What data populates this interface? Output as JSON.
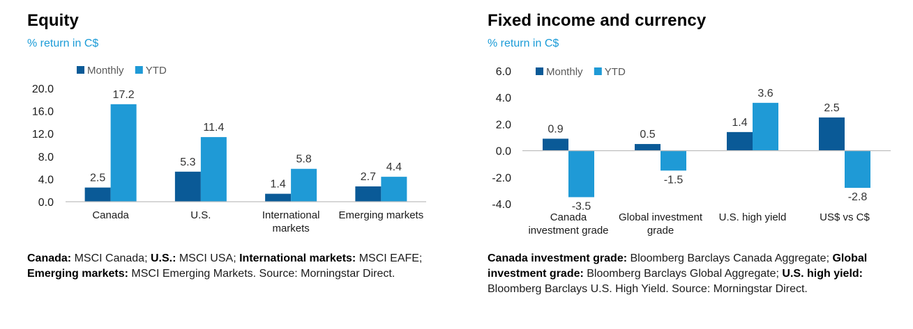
{
  "colors": {
    "monthly": "#0a5a97",
    "ytd": "#1f9ad6",
    "axis": "#bfbfbf",
    "subtitle": "#1a9bd7"
  },
  "equity": {
    "title": "Equity",
    "subtitle": "% return in C$",
    "chart_data": {
      "type": "bar",
      "categories": [
        [
          "Canada"
        ],
        [
          "U.S."
        ],
        [
          "International",
          "markets"
        ],
        [
          "Emerging markets"
        ]
      ],
      "series": [
        {
          "name": "Monthly",
          "values": [
            2.5,
            5.3,
            1.4,
            2.7
          ],
          "labels": [
            "2.5",
            "5.3",
            "1.4",
            "2.7"
          ]
        },
        {
          "name": "YTD",
          "values": [
            17.2,
            11.4,
            5.8,
            4.4
          ],
          "labels": [
            "17.2",
            "11.4",
            "5.8",
            "4.4"
          ]
        }
      ],
      "ylim": [
        0,
        20
      ],
      "yticks": [
        "0.0",
        "4.0",
        "8.0",
        "12.0",
        "16.0",
        "20.0"
      ],
      "ytick_values": [
        0,
        4,
        8,
        12,
        16,
        20
      ],
      "legend_position": "top-left",
      "grid": false
    },
    "note": [
      {
        "b": "Canada:",
        "t": " MSCI Canada; "
      },
      {
        "b": "U.S.:",
        "t": " MSCI USA; "
      },
      {
        "b": "International markets:",
        "t": " MSCI EAFE; "
      },
      {
        "b": "Emerging markets:",
        "t": " MSCI Emerging Markets. Source: Morningstar Direct."
      }
    ]
  },
  "fixed": {
    "title": "Fixed income and currency",
    "subtitle": "% return in C$",
    "chart_data": {
      "type": "bar",
      "categories": [
        [
          "Canada",
          "investment grade"
        ],
        [
          "Global investment",
          "grade"
        ],
        [
          "U.S. high yield"
        ],
        [
          "US$ vs C$"
        ]
      ],
      "series": [
        {
          "name": "Monthly",
          "values": [
            0.9,
            0.5,
            1.4,
            2.5
          ],
          "labels": [
            "0.9",
            "0.5",
            "1.4",
            "2.5"
          ]
        },
        {
          "name": "YTD",
          "values": [
            -3.5,
            -1.5,
            3.6,
            -2.8
          ],
          "labels": [
            "-3.5",
            "-1.5",
            "3.6",
            "-2.8"
          ]
        }
      ],
      "ylim": [
        -4,
        6
      ],
      "yticks": [
        "-4.0",
        "-2.0",
        "0.0",
        "2.0",
        "4.0",
        "6.0"
      ],
      "ytick_values": [
        -4,
        -2,
        0,
        2,
        4,
        6
      ],
      "legend_position": "top-left",
      "grid": false
    },
    "note": [
      {
        "b": "Canada investment grade:",
        "t": " Bloomberg Barclays Canada Aggregate; "
      },
      {
        "b": "Global investment grade:",
        "t": " Bloomberg Barclays Global Aggregate; "
      },
      {
        "b": "U.S. high yield:",
        "t": " Bloomberg Barclays U.S. High Yield. Source: Morningstar Direct."
      }
    ]
  }
}
